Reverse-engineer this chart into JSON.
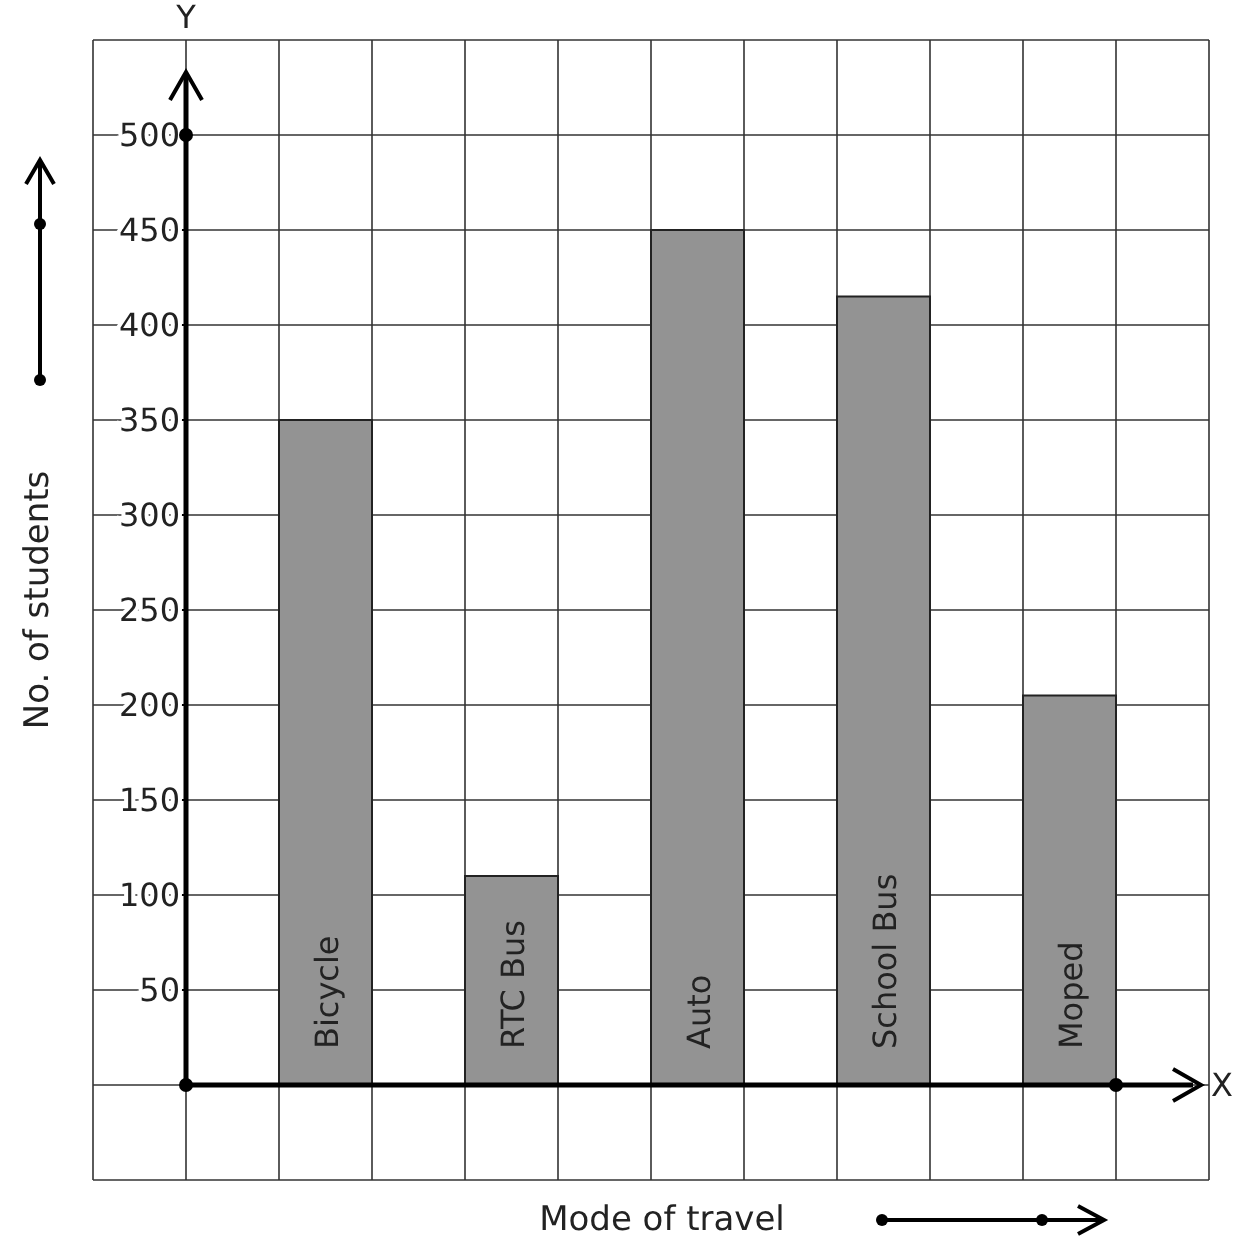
{
  "chart_data": {
    "type": "bar",
    "xlabel": "Mode of travel",
    "ylabel": "No. of students",
    "categories": [
      "Bicycle",
      "RTC Bus",
      "Auto",
      "School Bus",
      "Moped"
    ],
    "values": [
      350,
      110,
      450,
      415,
      205
    ],
    "color": "#939393",
    "ylim": [
      -50,
      550
    ],
    "yticks": [
      50,
      100,
      150,
      200,
      250,
      300,
      350,
      400,
      450,
      500
    ],
    "grid": true,
    "annotations": [
      "Y",
      "X"
    ]
  }
}
